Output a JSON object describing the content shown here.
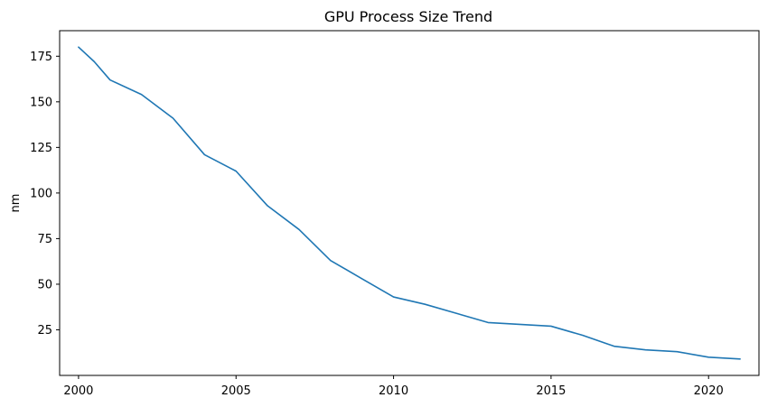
{
  "chart_data": {
    "type": "line",
    "title": "GPU Process Size Trend",
    "xlabel": "",
    "ylabel": "nm",
    "xlim": [
      1999.4,
      2021.6
    ],
    "ylim": [
      0,
      189
    ],
    "xticks": [
      2000,
      2005,
      2010,
      2015,
      2020
    ],
    "yticks": [
      25,
      50,
      75,
      100,
      125,
      150,
      175
    ],
    "grid": false,
    "legend": "none",
    "series": [
      {
        "color": "#1f77b4",
        "x": [
          2000,
          2000.5,
          2001,
          2002,
          2003,
          2004,
          2005,
          2006,
          2007,
          2008,
          2009,
          2010,
          2011,
          2012,
          2013,
          2014,
          2015,
          2016,
          2017,
          2018,
          2019,
          2020,
          2021
        ],
        "y": [
          180,
          172,
          162,
          154,
          141,
          121,
          112,
          93,
          80,
          63,
          53,
          43,
          39,
          34,
          29,
          28,
          27,
          22,
          16,
          14,
          13,
          10,
          9
        ]
      }
    ]
  }
}
